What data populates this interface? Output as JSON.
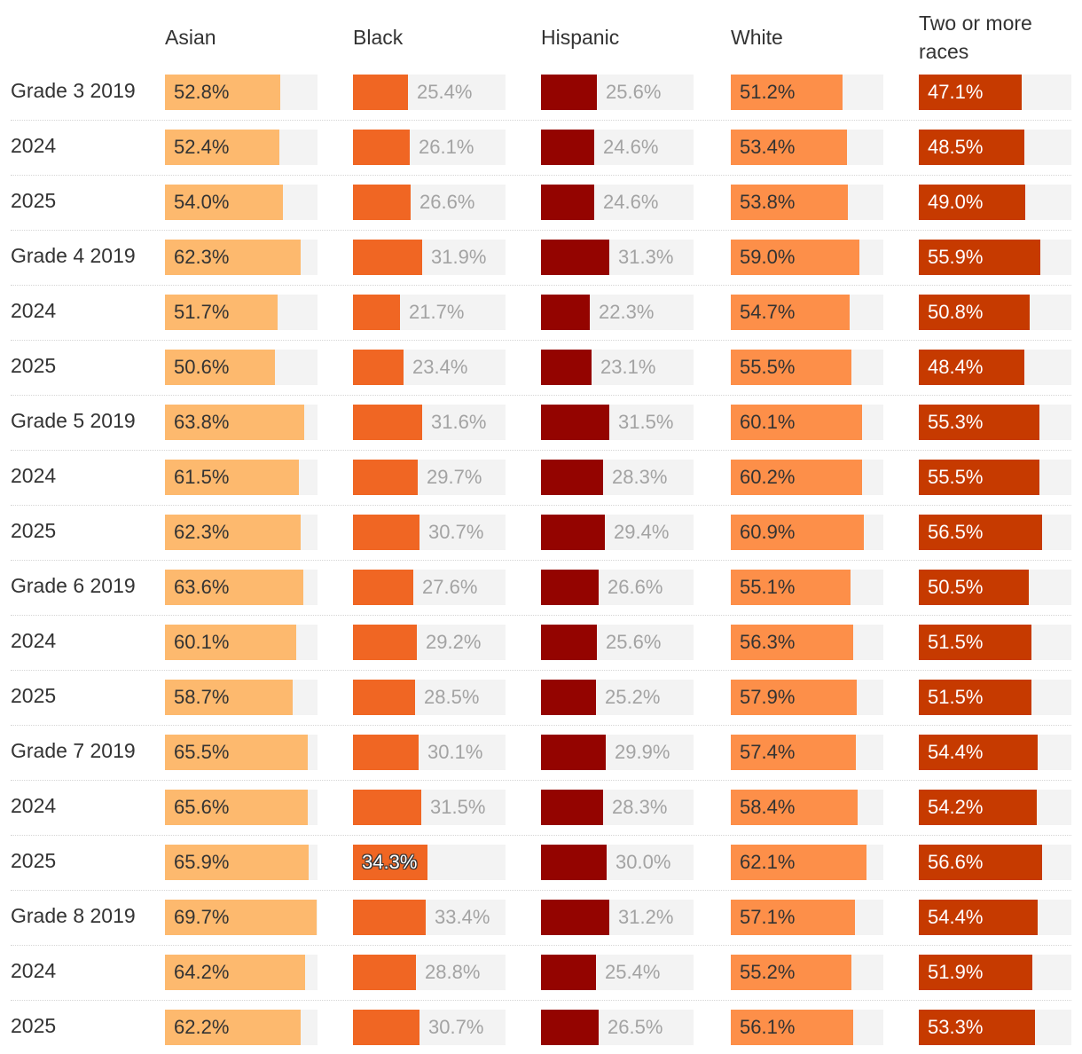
{
  "chart_data": {
    "type": "table",
    "title": "",
    "columns": [
      "Asian",
      "Black",
      "Hispanic",
      "White",
      "Two or more races"
    ],
    "colors": [
      "#fdb96e",
      "#f06623",
      "#940400",
      "#fd8f49",
      "#c63a00"
    ],
    "track_color": "#f3f3f3",
    "max_value": 70,
    "highlight": {
      "row": 14,
      "column": 1
    },
    "rows": [
      {
        "label": "Grade 3 2019",
        "values": [
          52.8,
          25.4,
          25.6,
          51.2,
          47.1
        ],
        "display": [
          "52.8%",
          "25.4%",
          "25.6%",
          "51.2%",
          "47.1%"
        ]
      },
      {
        "label": "2024",
        "values": [
          52.4,
          26.1,
          24.6,
          53.4,
          48.5
        ],
        "display": [
          "52.4%",
          "26.1%",
          "24.6%",
          "53.4%",
          "48.5%"
        ]
      },
      {
        "label": "2025",
        "values": [
          54.0,
          26.6,
          24.6,
          53.8,
          49.0
        ],
        "display": [
          "54.0%",
          "26.6%",
          "24.6%",
          "53.8%",
          "49.0%"
        ]
      },
      {
        "label": "Grade 4 2019",
        "values": [
          62.3,
          31.9,
          31.3,
          59.0,
          55.9
        ],
        "display": [
          "62.3%",
          "31.9%",
          "31.3%",
          "59.0%",
          "55.9%"
        ]
      },
      {
        "label": "2024",
        "values": [
          51.7,
          21.7,
          22.3,
          54.7,
          50.8
        ],
        "display": [
          "51.7%",
          "21.7%",
          "22.3%",
          "54.7%",
          "50.8%"
        ]
      },
      {
        "label": "2025",
        "values": [
          50.6,
          23.4,
          23.1,
          55.5,
          48.4
        ],
        "display": [
          "50.6%",
          "23.4%",
          "23.1%",
          "55.5%",
          "48.4%"
        ]
      },
      {
        "label": "Grade 5 2019",
        "values": [
          63.8,
          31.6,
          31.5,
          60.1,
          55.3
        ],
        "display": [
          "63.8%",
          "31.6%",
          "31.5%",
          "60.1%",
          "55.3%"
        ]
      },
      {
        "label": "2024",
        "values": [
          61.5,
          29.7,
          28.3,
          60.2,
          55.5
        ],
        "display": [
          "61.5%",
          "29.7%",
          "28.3%",
          "60.2%",
          "55.5%"
        ]
      },
      {
        "label": "2025",
        "values": [
          62.3,
          30.7,
          29.4,
          60.9,
          56.5
        ],
        "display": [
          "62.3%",
          "30.7%",
          "29.4%",
          "60.9%",
          "56.5%"
        ]
      },
      {
        "label": "Grade 6 2019",
        "values": [
          63.6,
          27.6,
          26.6,
          55.1,
          50.5
        ],
        "display": [
          "63.6%",
          "27.6%",
          "26.6%",
          "55.1%",
          "50.5%"
        ]
      },
      {
        "label": "2024",
        "values": [
          60.1,
          29.2,
          25.6,
          56.3,
          51.5
        ],
        "display": [
          "60.1%",
          "29.2%",
          "25.6%",
          "56.3%",
          "51.5%"
        ]
      },
      {
        "label": "2025",
        "values": [
          58.7,
          28.5,
          25.2,
          57.9,
          51.5
        ],
        "display": [
          "58.7%",
          "28.5%",
          "25.2%",
          "57.9%",
          "51.5%"
        ]
      },
      {
        "label": "Grade 7 2019",
        "values": [
          65.5,
          30.1,
          29.9,
          57.4,
          54.4
        ],
        "display": [
          "65.5%",
          "30.1%",
          "29.9%",
          "57.4%",
          "54.4%"
        ]
      },
      {
        "label": "2024",
        "values": [
          65.6,
          31.5,
          28.3,
          58.4,
          54.2
        ],
        "display": [
          "65.6%",
          "31.5%",
          "28.3%",
          "58.4%",
          "54.2%"
        ]
      },
      {
        "label": "2025",
        "values": [
          65.9,
          34.3,
          30.0,
          62.1,
          56.6
        ],
        "display": [
          "65.9%",
          "34.3%",
          "30.0%",
          "62.1%",
          "56.6%"
        ]
      },
      {
        "label": "Grade 8 2019",
        "values": [
          69.7,
          33.4,
          31.2,
          57.1,
          54.4
        ],
        "display": [
          "69.7%",
          "33.4%",
          "31.2%",
          "57.1%",
          "54.4%"
        ]
      },
      {
        "label": "2024",
        "values": [
          64.2,
          28.8,
          25.4,
          55.2,
          51.9
        ],
        "display": [
          "64.2%",
          "28.8%",
          "25.4%",
          "55.2%",
          "51.9%"
        ]
      },
      {
        "label": "2025",
        "values": [
          62.2,
          30.7,
          26.5,
          56.1,
          53.3
        ],
        "display": [
          "62.2%",
          "30.7%",
          "26.5%",
          "56.1%",
          "53.3%"
        ]
      }
    ]
  }
}
